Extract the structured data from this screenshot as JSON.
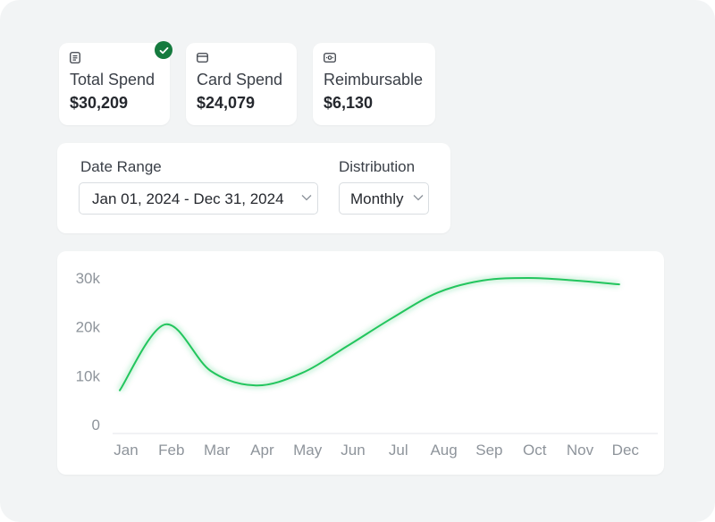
{
  "stats": [
    {
      "label": "Total Spend",
      "value": "$30,209",
      "icon": "document-icon",
      "selected": true
    },
    {
      "label": "Card Spend",
      "value": "$24,079",
      "icon": "card-icon"
    },
    {
      "label": "Reimbursable",
      "value": "$6,130",
      "icon": "cash-icon"
    }
  ],
  "filters": {
    "date_range_label": "Date Range",
    "date_range_value": "Jan 01, 2024 - Dec 31, 2024",
    "distribution_label": "Distribution",
    "distribution_value": "Monthly"
  },
  "colors": {
    "accent_line": "#22c55e",
    "check_badge": "#157a3e"
  },
  "chart_data": {
    "type": "line",
    "categories": [
      "Jan",
      "Feb",
      "Mar",
      "Apr",
      "May",
      "Jun",
      "Jul",
      "Aug",
      "Sep",
      "Oct",
      "Nov",
      "Dec"
    ],
    "series": [
      {
        "values": [
          7000,
          20500,
          11000,
          8000,
          10500,
          16000,
          21800,
          27000,
          29500,
          30000,
          29500,
          28700
        ]
      }
    ],
    "yticks": [
      "0",
      "10k",
      "20k",
      "30k"
    ],
    "ylim": [
      0,
      30000
    ],
    "grid": false,
    "title": "",
    "xlabel": "",
    "ylabel": ""
  }
}
